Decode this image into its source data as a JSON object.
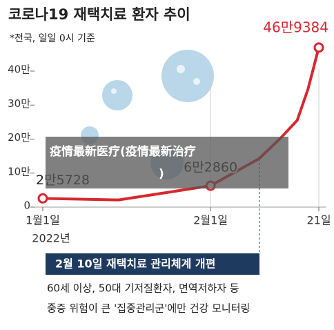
{
  "chart_data": {
    "type": "line",
    "title": "코로나19 재택치료 환자 추이",
    "subtitle": "*전국, 일일 0시 기준",
    "x": [
      0,
      14,
      31,
      40,
      44,
      47,
      49,
      51
    ],
    "xlim": [
      0,
      51
    ],
    "xticks": [
      {
        "value": 0,
        "label": "1월1일"
      },
      {
        "value": 31,
        "label": "2월1일"
      },
      {
        "value": 51,
        "label": "21일"
      }
    ],
    "xtick_sublabel": "2022년",
    "ylim": [
      0,
      40
    ],
    "yticks": [
      0,
      {
        "value": 10,
        "label": "10만"
      },
      {
        "value": 20,
        "label": "20만"
      },
      {
        "value": 30,
        "label": "30만"
      },
      {
        "value": 40,
        "label": "40만"
      }
    ],
    "series": [
      {
        "name": "재택치료 환자",
        "color": "#d6282f",
        "values": [
          2.5728,
          2.1,
          6.286,
          14.3,
          20.4,
          25.5,
          34.7,
          46.9384
        ],
        "value_labels": [
          "2만5728",
          null,
          "6만2860",
          null,
          null,
          null,
          null,
          "46만9384"
        ]
      }
    ],
    "annotation": {
      "x": 40,
      "label": "2월 10일 재택치료 관리체계 개편",
      "notes": [
        "60세 이상, 50대 기저질환자, 면역저하자 등",
        "중증 위험이 큰 '집중관리군'에만 건강 모니터링"
      ]
    },
    "overlay_text": [
      "疫情最新医疗(疫情最新治疗",
      ")"
    ]
  }
}
